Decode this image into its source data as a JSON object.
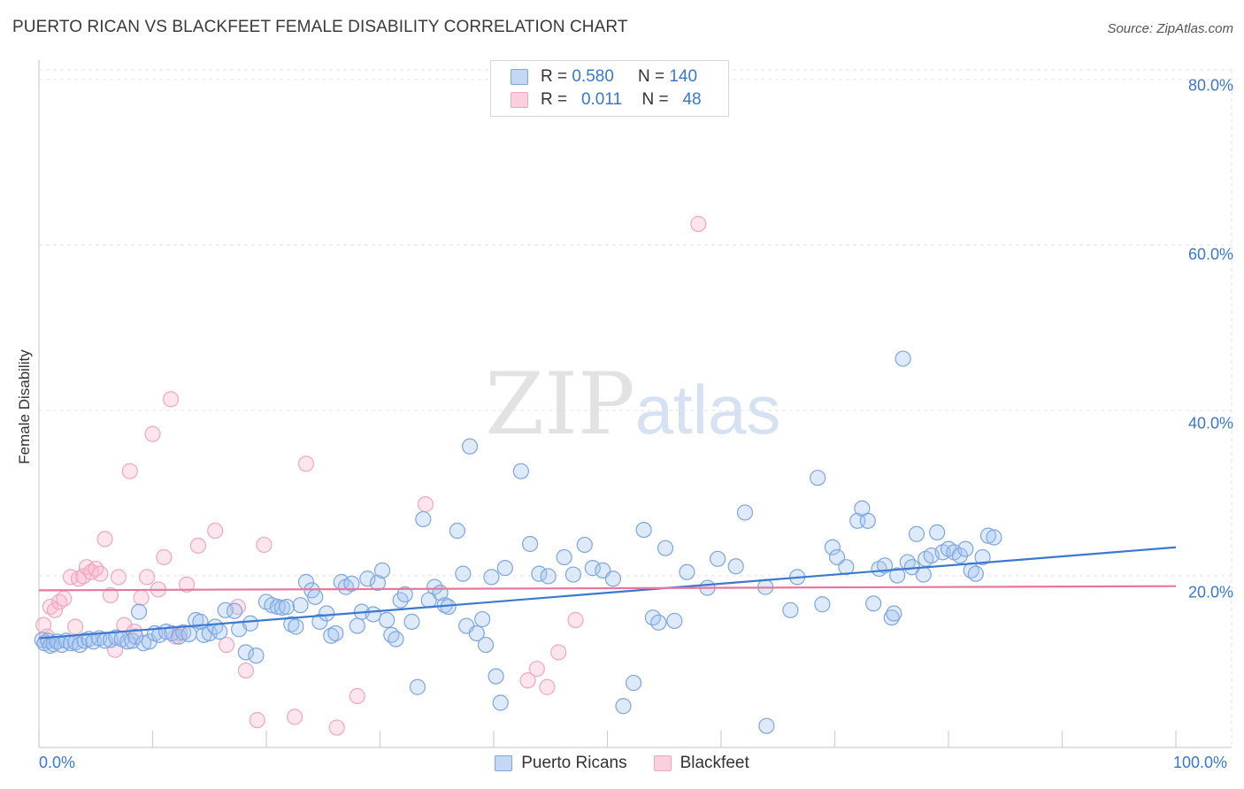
{
  "header": {
    "title": "PUERTO RICAN VS BLACKFEET FEMALE DISABILITY CORRELATION CHART",
    "source": "Source: ZipAtlas.com"
  },
  "watermark": {
    "zip": "ZIP",
    "atlas": "atlas"
  },
  "legend_top": {
    "rows": [
      {
        "r_label": "R =",
        "r_value": "0.580",
        "n_label": "N =",
        "n_value": "140"
      },
      {
        "r_label": "R =",
        "r_value": "0.011",
        "n_label": "N =",
        "n_value": "48"
      }
    ]
  },
  "chart_data": {
    "type": "scatter",
    "title": "PUERTO RICAN VS BLACKFEET FEMALE DISABILITY CORRELATION CHART",
    "xlabel": "",
    "ylabel": "Female Disability",
    "xlim": [
      0,
      100
    ],
    "ylim": [
      0,
      80
    ],
    "x_tick_labels": [
      "0.0%",
      "100.0%"
    ],
    "y_ticks": [
      20,
      40,
      60,
      80
    ],
    "y_tick_labels": [
      "20.0%",
      "40.0%",
      "60.0%",
      "80.0%"
    ],
    "grid": true,
    "legend_position": "top-center",
    "series": [
      {
        "name": "Puerto Ricans",
        "color": "#7ea6e0",
        "line_color": "#3b78d0",
        "r": 0.58,
        "n": 140,
        "trend": [
          [
            0,
            13.2
          ],
          [
            100,
            24.2
          ]
        ],
        "points": [
          [
            0.3,
            13.0
          ],
          [
            0.5,
            12.6
          ],
          [
            0.8,
            12.9
          ],
          [
            1.0,
            12.3
          ],
          [
            1.3,
            12.5
          ],
          [
            1.6,
            12.8
          ],
          [
            2.0,
            12.4
          ],
          [
            2.4,
            12.9
          ],
          [
            2.8,
            12.6
          ],
          [
            3.2,
            12.7
          ],
          [
            3.6,
            12.4
          ],
          [
            4.0,
            12.9
          ],
          [
            4.4,
            13.1
          ],
          [
            4.8,
            12.8
          ],
          [
            5.3,
            13.2
          ],
          [
            5.8,
            12.9
          ],
          [
            6.3,
            13.0
          ],
          [
            6.8,
            13.3
          ],
          [
            7.3,
            13.1
          ],
          [
            7.8,
            12.8
          ],
          [
            8.2,
            12.9
          ],
          [
            8.5,
            13.4
          ],
          [
            8.8,
            16.4
          ],
          [
            9.2,
            12.6
          ],
          [
            9.7,
            12.8
          ],
          [
            10.2,
            13.8
          ],
          [
            10.6,
            13.6
          ],
          [
            11.2,
            14.0
          ],
          [
            11.7,
            13.8
          ],
          [
            12.3,
            13.4
          ],
          [
            12.7,
            13.9
          ],
          [
            13.2,
            13.7
          ],
          [
            13.8,
            15.4
          ],
          [
            14.2,
            15.2
          ],
          [
            14.5,
            13.6
          ],
          [
            15.0,
            13.8
          ],
          [
            15.5,
            14.6
          ],
          [
            15.9,
            14.0
          ],
          [
            16.4,
            16.6
          ],
          [
            17.2,
            16.5
          ],
          [
            17.6,
            14.3
          ],
          [
            18.2,
            11.5
          ],
          [
            18.6,
            15.0
          ],
          [
            19.1,
            11.1
          ],
          [
            20.0,
            17.6
          ],
          [
            20.5,
            17.2
          ],
          [
            21.0,
            17.0
          ],
          [
            21.4,
            16.9
          ],
          [
            21.8,
            17.0
          ],
          [
            22.2,
            14.9
          ],
          [
            22.6,
            14.6
          ],
          [
            23.0,
            17.2
          ],
          [
            23.5,
            20.0
          ],
          [
            24.0,
            19.0
          ],
          [
            24.3,
            18.2
          ],
          [
            24.7,
            15.2
          ],
          [
            25.3,
            16.2
          ],
          [
            25.7,
            13.5
          ],
          [
            26.1,
            13.8
          ],
          [
            26.6,
            20.0
          ],
          [
            27.0,
            19.4
          ],
          [
            27.5,
            19.8
          ],
          [
            28.0,
            14.7
          ],
          [
            28.4,
            16.4
          ],
          [
            28.9,
            20.4
          ],
          [
            29.4,
            16.1
          ],
          [
            29.8,
            19.9
          ],
          [
            30.2,
            21.4
          ],
          [
            30.6,
            15.4
          ],
          [
            31.0,
            13.6
          ],
          [
            31.4,
            13.1
          ],
          [
            31.8,
            17.8
          ],
          [
            32.2,
            18.5
          ],
          [
            32.8,
            15.2
          ],
          [
            33.3,
            7.3
          ],
          [
            33.8,
            27.6
          ],
          [
            34.3,
            17.8
          ],
          [
            34.8,
            19.4
          ],
          [
            35.3,
            18.7
          ],
          [
            35.7,
            17.2
          ],
          [
            36.0,
            17.0
          ],
          [
            36.8,
            26.2
          ],
          [
            37.3,
            21.0
          ],
          [
            37.6,
            14.7
          ],
          [
            37.9,
            36.4
          ],
          [
            38.5,
            13.8
          ],
          [
            39.0,
            15.5
          ],
          [
            39.3,
            12.4
          ],
          [
            39.8,
            20.6
          ],
          [
            40.2,
            8.6
          ],
          [
            40.6,
            5.4
          ],
          [
            42.4,
            33.4
          ],
          [
            43.2,
            24.6
          ],
          [
            44.0,
            21.0
          ],
          [
            44.8,
            20.7
          ],
          [
            46.2,
            23.0
          ],
          [
            47.0,
            20.9
          ],
          [
            48.0,
            24.5
          ],
          [
            48.7,
            21.7
          ],
          [
            49.6,
            21.4
          ],
          [
            50.5,
            20.4
          ],
          [
            51.4,
            5.0
          ],
          [
            52.3,
            7.8
          ],
          [
            53.2,
            26.3
          ],
          [
            54.0,
            15.7
          ],
          [
            54.5,
            15.1
          ],
          [
            55.1,
            24.1
          ],
          [
            55.9,
            15.3
          ],
          [
            57.0,
            21.2
          ],
          [
            58.8,
            19.3
          ],
          [
            59.7,
            22.8
          ],
          [
            61.3,
            21.9
          ],
          [
            62.1,
            28.4
          ],
          [
            63.9,
            19.4
          ],
          [
            66.1,
            16.6
          ],
          [
            66.7,
            20.6
          ],
          [
            68.5,
            32.6
          ],
          [
            68.9,
            17.3
          ],
          [
            69.8,
            24.2
          ],
          [
            70.2,
            23.0
          ],
          [
            71.0,
            21.8
          ],
          [
            72.0,
            27.4
          ],
          [
            72.4,
            28.9
          ],
          [
            72.9,
            27.4
          ],
          [
            73.4,
            17.4
          ],
          [
            73.9,
            21.6
          ],
          [
            74.4,
            22.0
          ],
          [
            75.0,
            15.7
          ],
          [
            75.2,
            16.2
          ],
          [
            75.5,
            20.8
          ],
          [
            76.0,
            47.0
          ],
          [
            76.4,
            22.4
          ],
          [
            76.8,
            21.8
          ],
          [
            77.2,
            25.8
          ],
          [
            77.8,
            20.9
          ],
          [
            78.0,
            22.8
          ],
          [
            78.5,
            23.2
          ],
          [
            79.0,
            26.0
          ],
          [
            79.5,
            23.6
          ],
          [
            80.0,
            24.0
          ],
          [
            80.5,
            23.6
          ],
          [
            81.0,
            23.2
          ],
          [
            81.5,
            24.0
          ],
          [
            82.0,
            21.4
          ],
          [
            82.4,
            21.0
          ],
          [
            83.0,
            23.0
          ],
          [
            83.5,
            25.6
          ],
          [
            84.0,
            25.4
          ],
          [
            64.0,
            2.6
          ],
          [
            41.0,
            21.7
          ]
        ]
      },
      {
        "name": "Blackfeet",
        "color": "#f2a7bf",
        "line_color": "#e8779c",
        "r": 0.011,
        "n": 48,
        "trend": [
          [
            0,
            19.0
          ],
          [
            100,
            19.5
          ]
        ],
        "points": [
          [
            0.4,
            14.8
          ],
          [
            0.7,
            13.4
          ],
          [
            1.0,
            17.0
          ],
          [
            1.4,
            16.6
          ],
          [
            1.8,
            17.6
          ],
          [
            2.2,
            18.0
          ],
          [
            2.8,
            20.6
          ],
          [
            3.2,
            14.6
          ],
          [
            3.5,
            20.4
          ],
          [
            3.9,
            20.7
          ],
          [
            4.2,
            21.8
          ],
          [
            4.6,
            21.2
          ],
          [
            5.0,
            21.6
          ],
          [
            5.4,
            21.0
          ],
          [
            5.8,
            25.2
          ],
          [
            6.3,
            18.4
          ],
          [
            6.7,
            11.8
          ],
          [
            7.0,
            20.6
          ],
          [
            7.5,
            14.8
          ],
          [
            8.0,
            33.4
          ],
          [
            8.4,
            14.0
          ],
          [
            9.0,
            18.1
          ],
          [
            9.5,
            20.6
          ],
          [
            10.0,
            37.9
          ],
          [
            10.5,
            19.1
          ],
          [
            11.0,
            23.0
          ],
          [
            11.6,
            42.1
          ],
          [
            12.0,
            13.4
          ],
          [
            12.4,
            13.8
          ],
          [
            13.0,
            19.7
          ],
          [
            14.0,
            24.4
          ],
          [
            15.5,
            26.2
          ],
          [
            16.5,
            12.4
          ],
          [
            17.5,
            17.0
          ],
          [
            18.2,
            9.3
          ],
          [
            19.2,
            3.3
          ],
          [
            19.8,
            24.5
          ],
          [
            22.5,
            3.7
          ],
          [
            23.5,
            34.3
          ],
          [
            26.2,
            2.4
          ],
          [
            28.0,
            6.2
          ],
          [
            34.0,
            29.4
          ],
          [
            43.0,
            8.1
          ],
          [
            43.8,
            9.5
          ],
          [
            44.7,
            7.3
          ],
          [
            45.7,
            11.5
          ],
          [
            47.2,
            15.4
          ],
          [
            58.0,
            63.3
          ]
        ]
      }
    ]
  }
}
